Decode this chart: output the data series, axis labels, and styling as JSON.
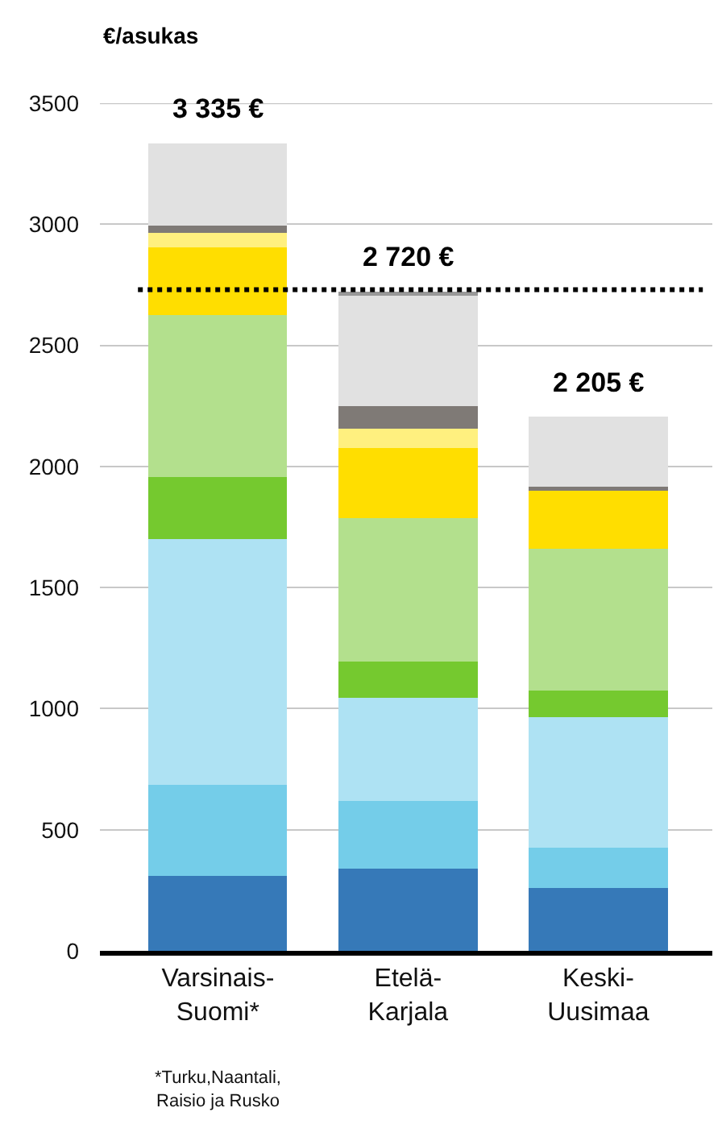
{
  "chart_data": {
    "type": "bar",
    "stacked": true,
    "ylabel": "€/asukas",
    "categories": [
      "Varsinais-Suomi*",
      "Etelä-Karjala",
      "Keski-Uusimaa"
    ],
    "series": [
      {
        "color": "#3679b8",
        "values": [
          310,
          340,
          260
        ]
      },
      {
        "color": "#74cde9",
        "values": [
          375,
          280,
          165
        ]
      },
      {
        "color": "#aee2f3",
        "values": [
          1015,
          425,
          540
        ]
      },
      {
        "color": "#75c92f",
        "values": [
          255,
          150,
          110
        ]
      },
      {
        "color": "#b3e08d",
        "values": [
          670,
          590,
          585
        ]
      },
      {
        "color": "#ffde00",
        "values": [
          280,
          290,
          240
        ]
      },
      {
        "color": "#fff07f",
        "values": [
          60,
          80,
          null
        ]
      },
      {
        "color": "#7f7a76",
        "values": [
          30,
          95,
          15
        ]
      },
      {
        "color": "#e1e1e1",
        "values": [
          340,
          455,
          290
        ]
      },
      {
        "color": "#999999",
        "values": [
          null,
          15,
          null
        ]
      }
    ],
    "totals": [
      "3 335 €",
      "2 720 €",
      "2 205 €"
    ],
    "ref_lines": [
      {
        "axis": "y",
        "value": 2730,
        "color": "#000000",
        "line_style": "dotted"
      }
    ],
    "annotations": [
      "*Turku,Naantali, Raisio ja Rusko"
    ],
    "ylim": [
      0,
      3500
    ],
    "yticks": [
      0,
      500,
      1000,
      1500,
      2000,
      2500,
      3000,
      3500
    ],
    "grid": "y"
  }
}
